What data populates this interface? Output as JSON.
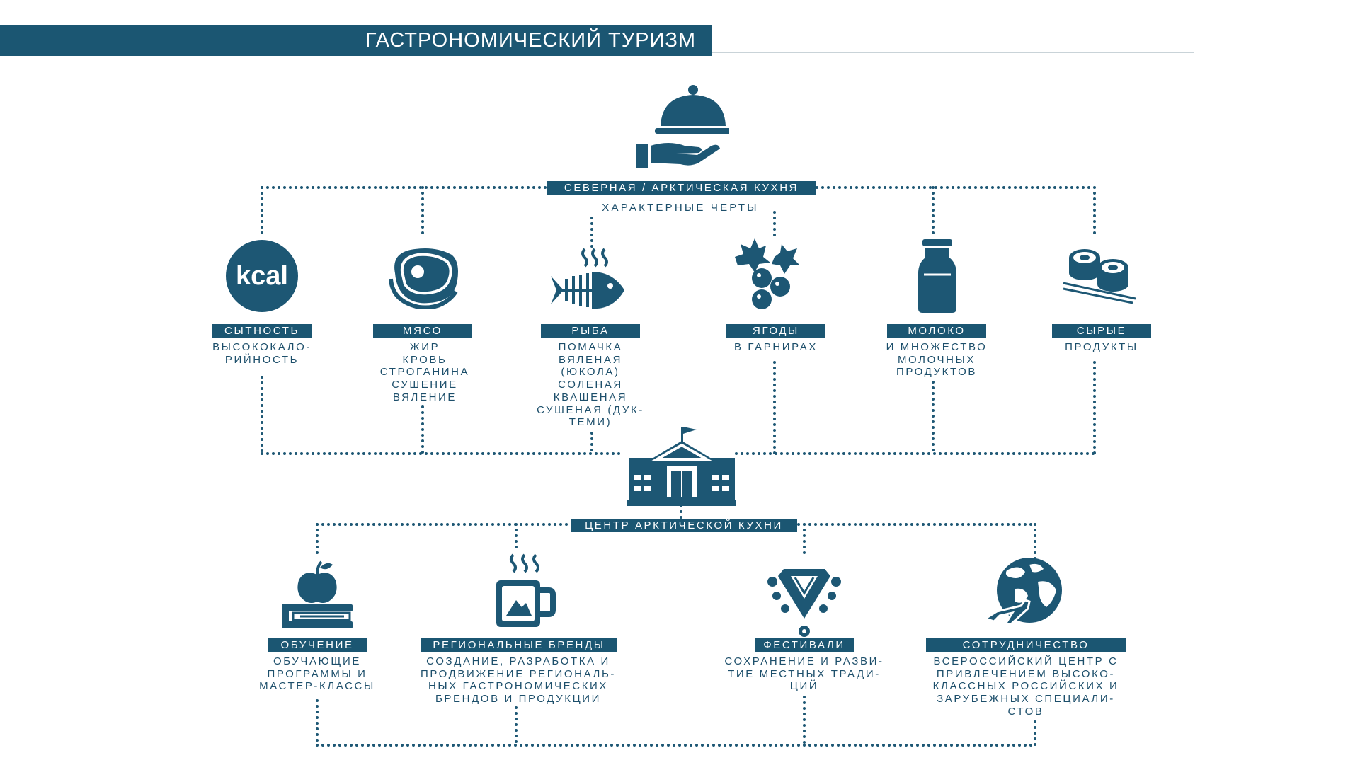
{
  "title": "ГАСТРОНОМИЧЕСКИЙ ТУРИЗМ",
  "top": {
    "label": "СЕВЕРНАЯ / АРКТИЧЕСКАЯ КУХНЯ",
    "subtitle": "ХАРАКТЕРНЫЕ ЧЕРТЫ",
    "icon": "serving-cloche-icon"
  },
  "features": [
    {
      "label": "СЫТНОСТЬ",
      "text": "ВЫСОКОКАЛО-\nРИЙНОСТЬ",
      "icon": "kcal-icon",
      "icon_text": "kcal"
    },
    {
      "label": "МЯСО",
      "text": "ЖИР\nКРОВЬ\nСТРОГАНИНА\nСУШЕНИЕ\nВЯЛЕНИЕ",
      "icon": "steak-icon"
    },
    {
      "label": "РЫБА",
      "text": "ПОМАЧКА\nВЯЛЕНАЯ\n(ЮКОЛА)\nСОЛЕНАЯ\nКВАШЕНАЯ\nСУШЕНАЯ (ДУК-\nТЕМИ)",
      "icon": "fish-icon"
    },
    {
      "label": "ЯГОДЫ",
      "text": "В ГАРНИРАХ",
      "icon": "berries-icon"
    },
    {
      "label": "МОЛОКО",
      "text": "И МНОЖЕСТВО\nМОЛОЧНЫХ\nПРОДУКТОВ",
      "icon": "milk-bottle-icon"
    },
    {
      "label": "СЫРЫЕ",
      "text": "ПРОДУКТЫ",
      "icon": "sushi-icon"
    }
  ],
  "center": {
    "label": "ЦЕНТР АРКТИЧЕСКОЙ КУХНИ",
    "icon": "school-building-icon"
  },
  "directions": [
    {
      "label": "ОБУЧЕНИЕ",
      "text": "ОБУЧАЮЩИЕ\nПРОГРАММЫ И\nМАСТЕР-КЛАССЫ",
      "icon": "apple-book-icon"
    },
    {
      "label": "РЕГИОНАЛЬНЫЕ БРЕНДЫ",
      "text": "СОЗДАНИЕ, РАЗРАБОТКА И\nПРОДВИЖЕНИЕ РЕГИОНАЛЬ-\nНЫХ ГАСТРОНОМИЧЕСКИХ\nБРЕНДОВ И ПРОДУКЦИИ",
      "icon": "mug-icon"
    },
    {
      "label": "ФЕСТИВАЛИ",
      "text": "СОХРАНЕНИЕ И РАЗВИ-\nТИЕ МЕСТНЫХ ТРАДИ-\nЦИЙ",
      "icon": "ornament-icon"
    },
    {
      "label": "СОТРУДНИЧЕСТВО",
      "text": "ВСЕРОССИЙСКИЙ ЦЕНТР С\nПРИВЛЕЧЕНИЕМ ВЫСОКО-\nКЛАССНЫХ РОССИЙСКИХ И\nЗАРУБЕЖНЫХ СПЕЦИАЛИ-\nСТОВ",
      "icon": "globe-plane-icon"
    }
  ],
  "colors": {
    "accent": "#1b5672",
    "icon": "#1d5774",
    "text": "#1d4f6b",
    "background": "#ffffff"
  }
}
